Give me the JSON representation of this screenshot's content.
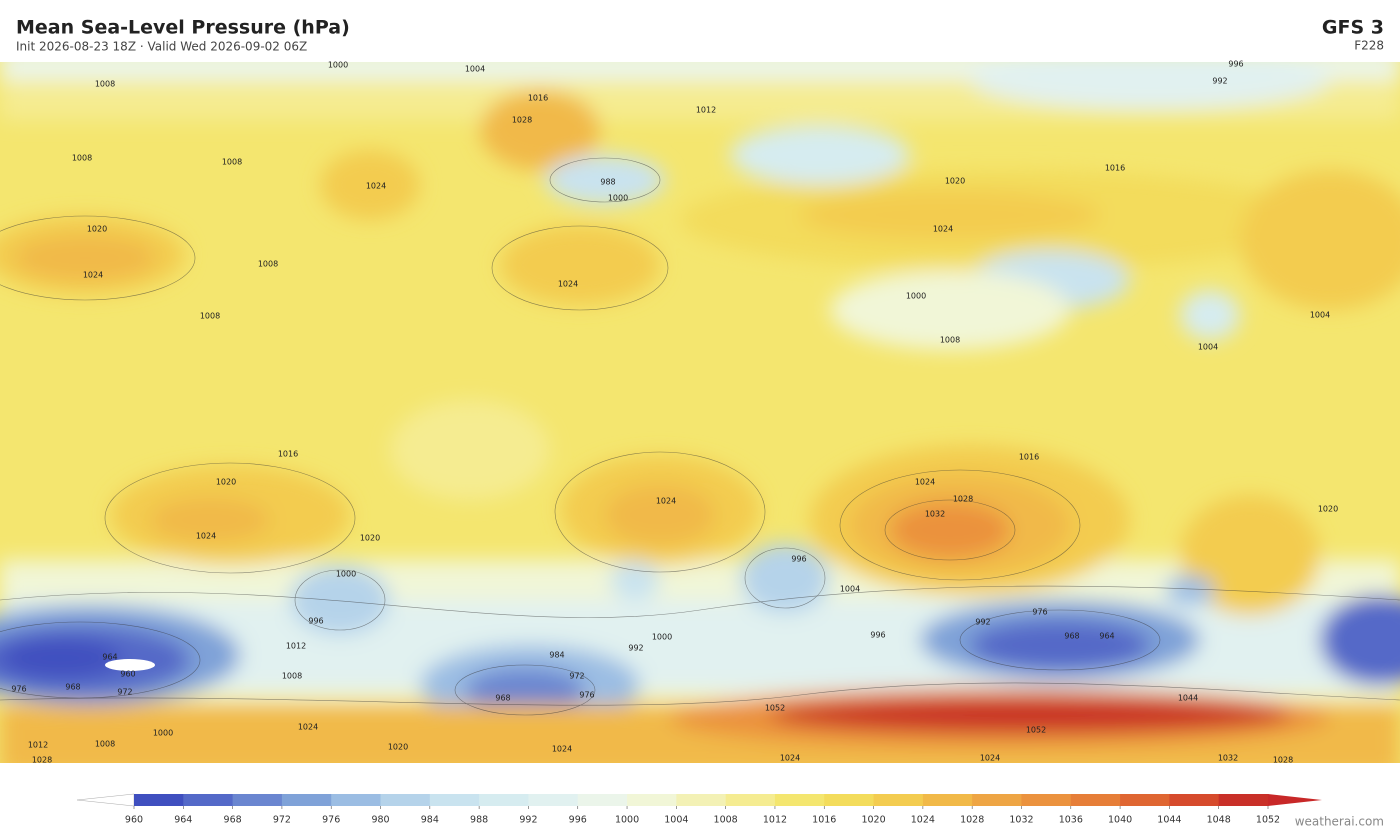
{
  "header": {
    "title": "Mean Sea-Level Pressure  (hPa)",
    "subtitle": "Init 2026-08-23 18Z  ·  Valid Wed 2026-09-02 06Z",
    "model": "GFS  3",
    "forecast_hour": "F228"
  },
  "map": {
    "contour_labels": [
      1000,
      1004,
      1008,
      1016,
      1012,
      992,
      996,
      1028,
      1000,
      988,
      1008,
      1008,
      1024,
      1020,
      1024,
      1024,
      1008,
      1008,
      1000,
      1008,
      1004,
      1004,
      1016,
      1020,
      1024,
      1016,
      1020,
      1024,
      1024,
      1024,
      1028,
      1032,
      1016,
      1020,
      1020,
      1000,
      996,
      1004,
      996,
      1012,
      1008,
      1000,
      992,
      984,
      972,
      968,
      976,
      964,
      960,
      968,
      976,
      972,
      964,
      968,
      992,
      976,
      996,
      1000,
      1024,
      1020,
      1024,
      1024,
      1024,
      1052,
      1044,
      1052,
      1032,
      1028,
      1028,
      1012,
      1008
    ]
  },
  "colorbar": {
    "levels": [
      960,
      964,
      968,
      972,
      976,
      980,
      984,
      988,
      992,
      996,
      1000,
      1004,
      1008,
      1012,
      1016,
      1020,
      1024,
      1028,
      1032,
      1036,
      1040,
      1044,
      1048,
      1052
    ],
    "colors": [
      "#3f4fbf",
      "#5469c8",
      "#6a86d0",
      "#7fa2d8",
      "#9bbde3",
      "#b5d3ea",
      "#c9e3ef",
      "#d6ecf0",
      "#e1f1f0",
      "#ebf5ea",
      "#f1f6d7",
      "#f3f1b5",
      "#f5ec91",
      "#f4e66f",
      "#f3dc5c",
      "#f3cc50",
      "#f1b948",
      "#eea544",
      "#eb923e",
      "#e67e38",
      "#df6632",
      "#d64b2c",
      "#c93028"
    ],
    "under_color": "#ffffff",
    "over_color": "#c82828"
  },
  "footer": {
    "credit": "weatherai.com"
  }
}
